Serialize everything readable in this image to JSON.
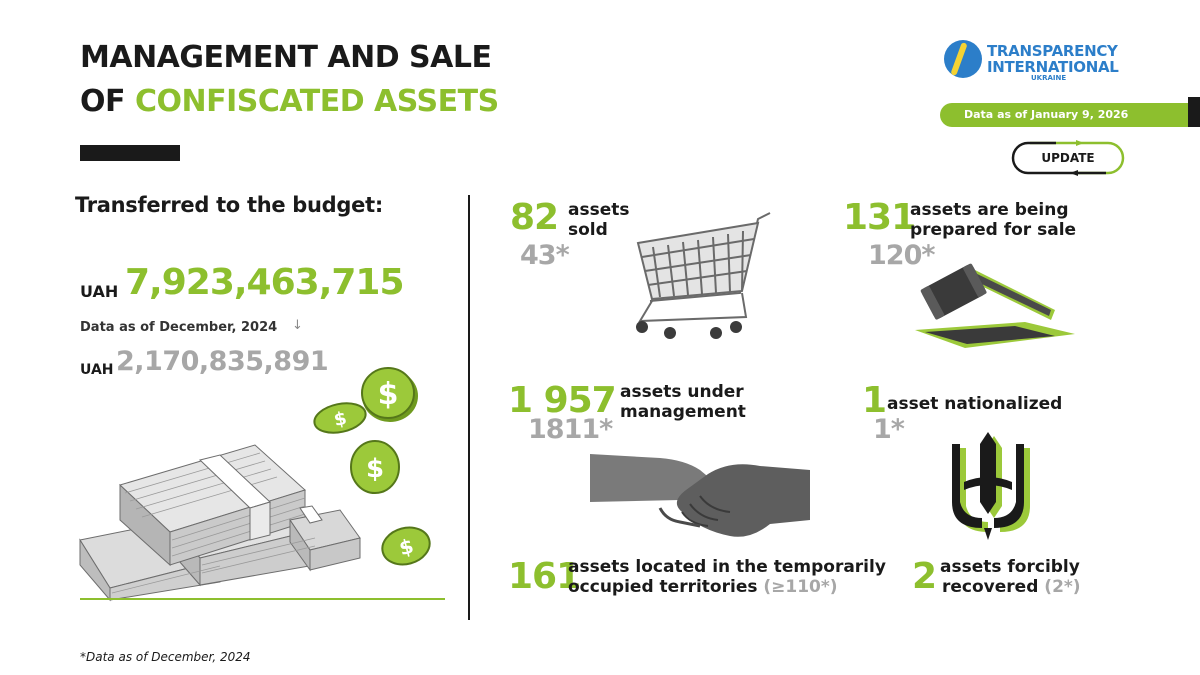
{
  "header": {
    "title_line1": "MANAGEMENT AND SALE",
    "title_line2_prefix": "OF ",
    "title_line2_highlight": "CONFISCATED ASSETS"
  },
  "logo": {
    "line1": "TRANSPARENCY",
    "line2": "INTERNATIONAL",
    "line3": "UKRAINE"
  },
  "date_banner": "Data as of January 9, 2026",
  "update_label": "UPDATE",
  "budget": {
    "label": "Transferred to the budget:",
    "currency": "UAH",
    "current_value": "7,923,463,715",
    "previous_label": "Data as of December, 2024",
    "arrow": "↓",
    "previous_value": "2,170,835,891"
  },
  "stats": {
    "sold": {
      "number": "82",
      "label_l1": "assets",
      "label_l2": "sold",
      "previous": "43*"
    },
    "prepared": {
      "number": "131",
      "label_l1": "assets are being",
      "label_l2": "prepared for sale",
      "previous": "120*"
    },
    "management": {
      "number": "1 957",
      "label_l1": "assets under",
      "label_l2": "management",
      "previous": "1811*"
    },
    "nationalized": {
      "number": "1",
      "label": "asset nationalized",
      "previous": "1*"
    },
    "occupied": {
      "number": "161",
      "label_l1": "assets located in the temporarily",
      "label_l2": "occupied territories",
      "label_extra": "(≥110*)"
    },
    "recovered": {
      "number": "2",
      "label_l1": "assets forcibly",
      "label_l2": "recovered",
      "label_extra": "(2*)"
    }
  },
  "footnote": "*Data as of December, 2024",
  "icons": [
    "shopping-cart-icon",
    "gavel-icon",
    "handshake-icon",
    "trident-icon",
    "money-stack-icon",
    "dollar-coin-icon"
  ],
  "colors": {
    "accent": "#8dbf2e",
    "muted": "#a7a7a7",
    "dark": "#1a1a1a",
    "logo_blue": "#2c7ec9"
  }
}
